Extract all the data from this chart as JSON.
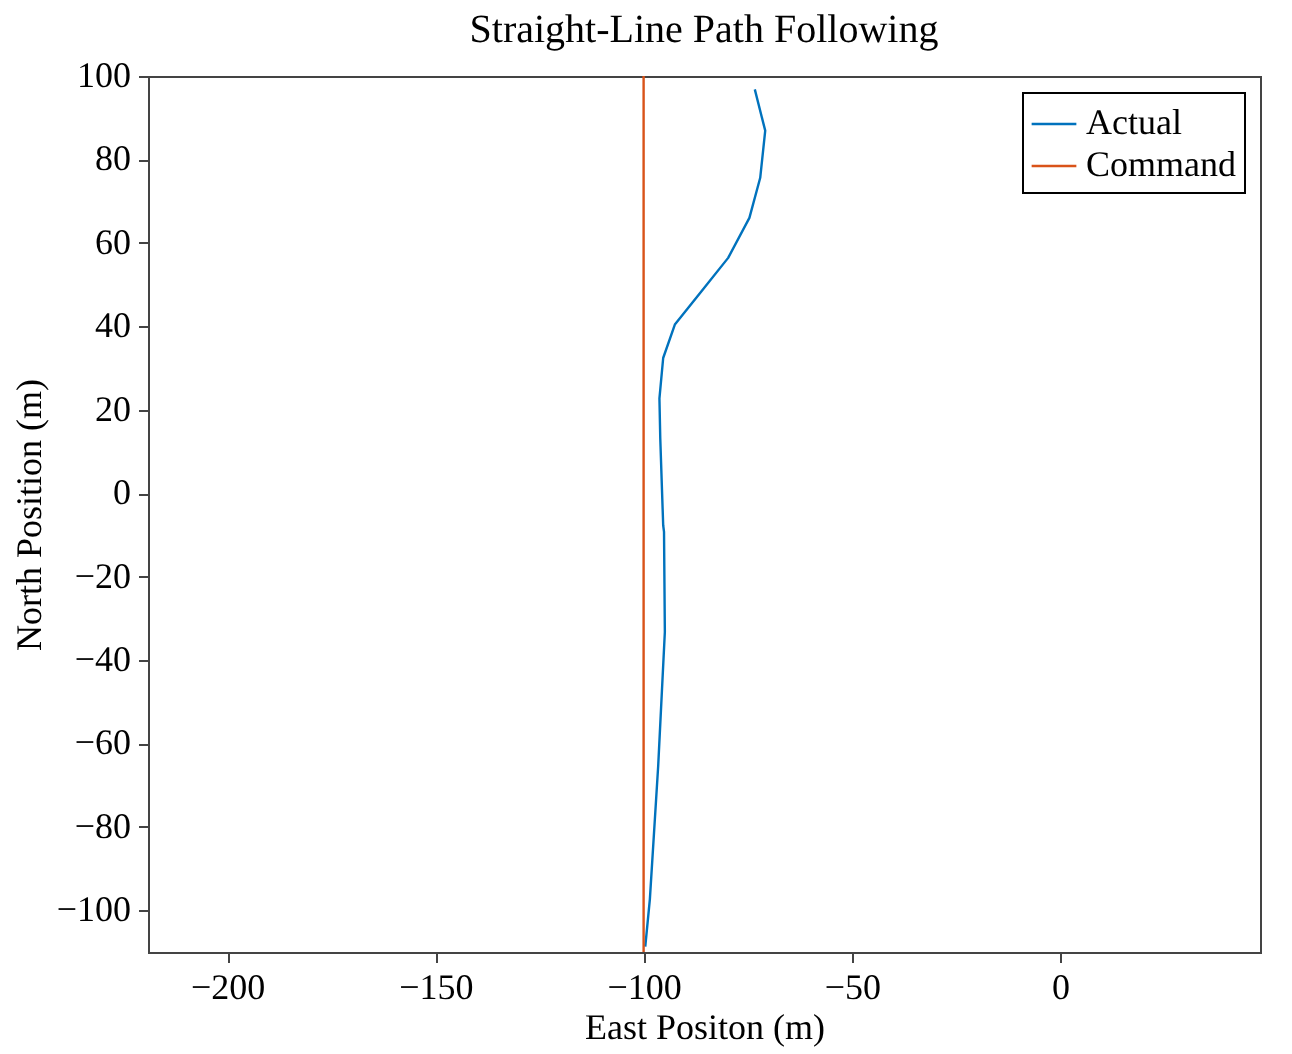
{
  "chart_data": {
    "type": "line",
    "title": "Straight-Line Path Following",
    "xlabel": "East Positon (m)",
    "ylabel": "North Position (m)",
    "series": [
      {
        "name": "Actual",
        "color": "#0072bd",
        "x": [
          -73.3,
          -70.8,
          -72.0,
          -74.6,
          -79.7,
          -86.1,
          -92.5,
          -95.3,
          -96.2,
          -96.0,
          -95.3,
          -95.1,
          -94.9,
          -96.5,
          -98.5,
          -99.6
        ],
        "values": [
          96.8,
          86.9,
          75.6,
          66.0,
          56.4,
          48.4,
          40.4,
          32.4,
          22.7,
          13.1,
          -7.7,
          -9.3,
          -33.3,
          -65.4,
          -97.4,
          -108.7
        ]
      },
      {
        "name": "Command",
        "color": "#d95319",
        "x": [
          -100,
          -100
        ],
        "values": [
          -110,
          100
        ]
      }
    ],
    "xlim": [
      -219,
      48
    ],
    "ylim": [
      -110,
      100
    ],
    "xticks": [
      -200,
      -150,
      -100,
      -50,
      0
    ],
    "yticks": [
      -100,
      -80,
      -60,
      -40,
      -20,
      0,
      20,
      40,
      60,
      80,
      100
    ],
    "grid": false,
    "legend": "top right",
    "marker": "none",
    "line_style": "solid"
  }
}
